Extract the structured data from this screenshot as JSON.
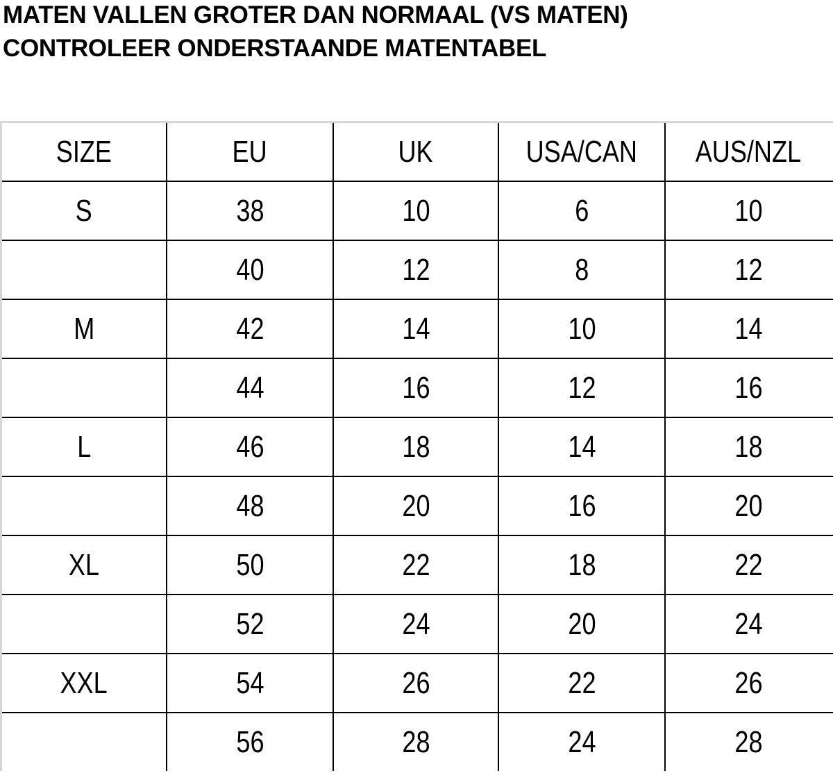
{
  "heading": {
    "line1": "MATEN VALLEN GROTER DAN NORMAAL (VS MATEN)",
    "line2": "CONTROLEER ONDERSTAANDE MATENTABEL"
  },
  "table": {
    "headers": [
      "SIZE",
      "EU",
      "UK",
      "USA/CAN",
      "AUS/NZL"
    ],
    "rows": [
      [
        "S",
        "38",
        "10",
        "6",
        "10"
      ],
      [
        "",
        "40",
        "12",
        "8",
        "12"
      ],
      [
        "M",
        "42",
        "14",
        "10",
        "14"
      ],
      [
        "",
        "44",
        "16",
        "12",
        "16"
      ],
      [
        "L",
        "46",
        "18",
        "14",
        "18"
      ],
      [
        "",
        "48",
        "20",
        "16",
        "20"
      ],
      [
        "XL",
        "50",
        "22",
        "18",
        "22"
      ],
      [
        "",
        "52",
        "24",
        "20",
        "24"
      ],
      [
        "XXL",
        "54",
        "26",
        "22",
        "26"
      ],
      [
        "",
        "56",
        "28",
        "24",
        "28"
      ]
    ]
  }
}
